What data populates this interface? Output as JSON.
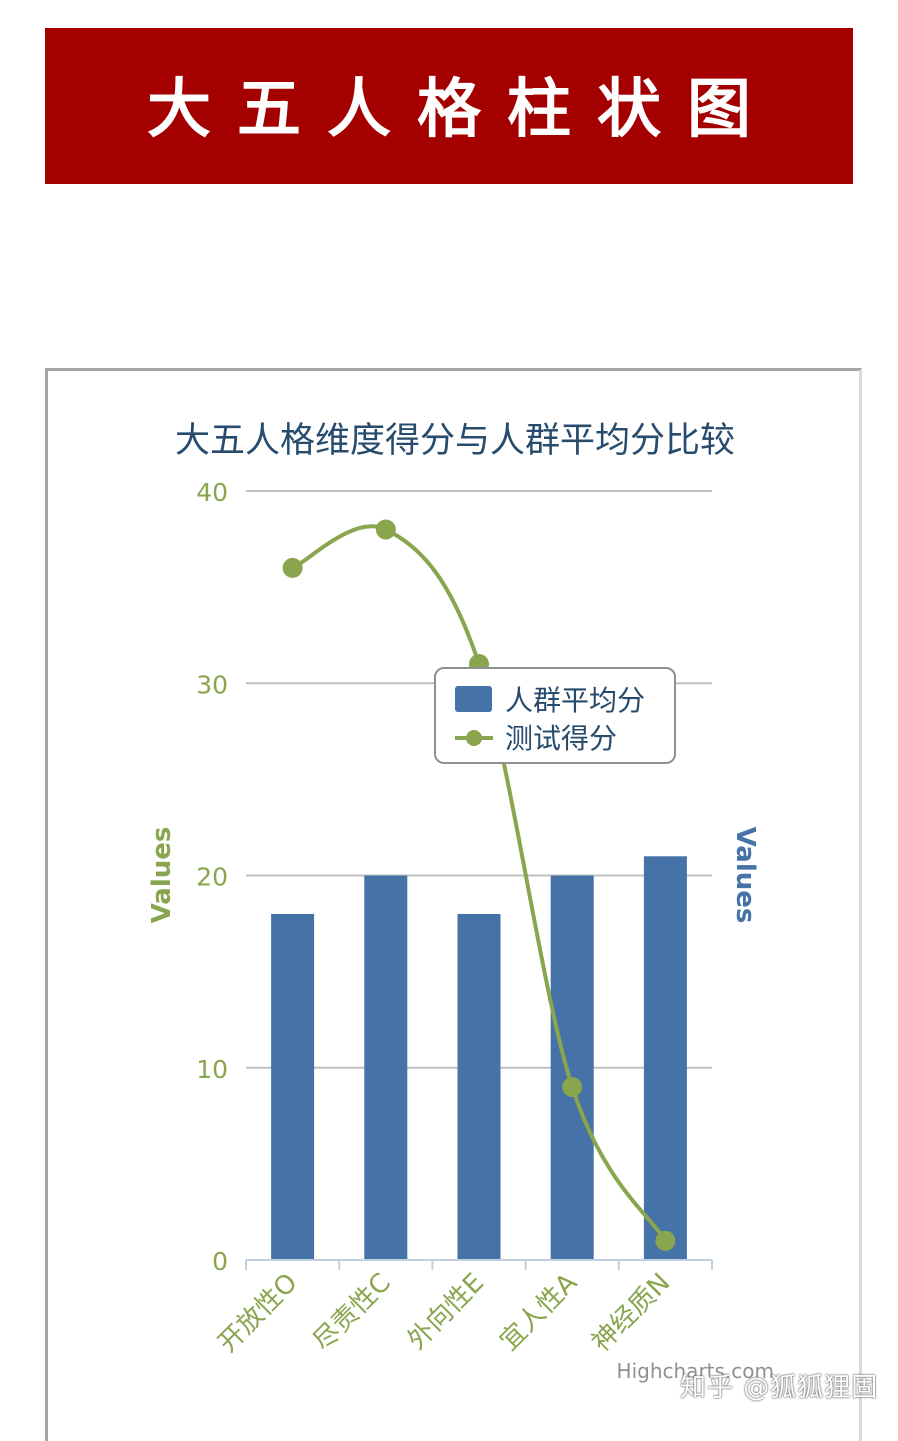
{
  "banner": {
    "title": "大五人格柱状图"
  },
  "chart_data": {
    "type": "bar",
    "title": "大五人格维度得分与人群平均分比较",
    "categories": [
      "开放性O",
      "尽责性C",
      "外向性E",
      "宜人性A",
      "神经质N"
    ],
    "series": [
      {
        "name": "人群平均分",
        "type": "bar",
        "values": [
          18,
          20,
          18,
          20,
          21
        ],
        "color": "#4572a7"
      },
      {
        "name": "测试得分",
        "type": "spline",
        "values": [
          36,
          38,
          31,
          9,
          1
        ],
        "color": "#89a54e"
      }
    ],
    "ylim": [
      0,
      40
    ],
    "yticks": [
      0,
      10,
      20,
      30,
      40
    ],
    "ylabel_left": "Values",
    "ylabel_right": "Values",
    "grid": true,
    "legend_position": "top-right",
    "credits": "Highcharts.com"
  },
  "watermark": "知乎 @狐狐狸固"
}
